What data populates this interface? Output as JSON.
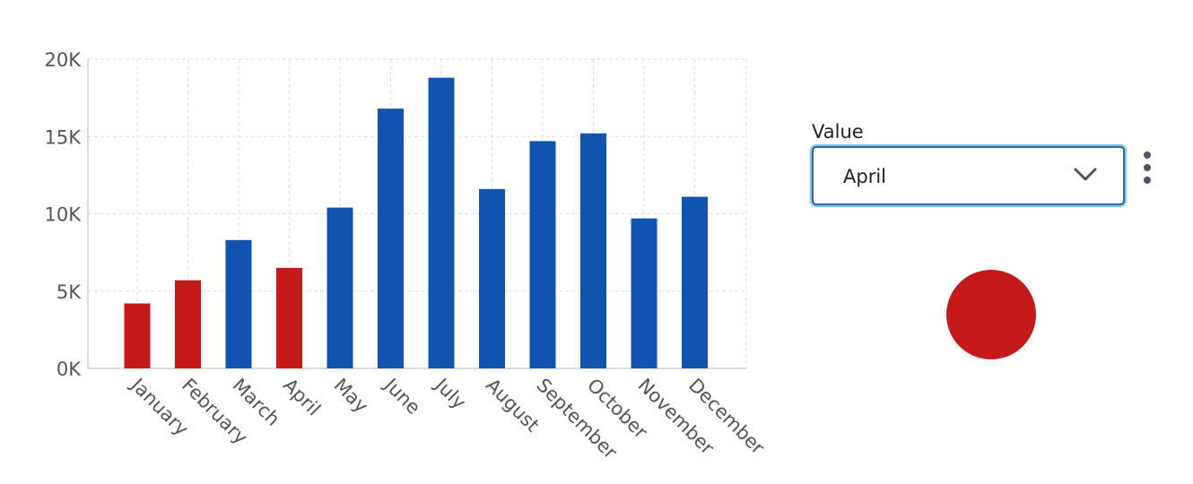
{
  "chart_data": {
    "type": "bar",
    "categories": [
      "January",
      "February",
      "March",
      "April",
      "May",
      "June",
      "July",
      "August",
      "September",
      "October",
      "November",
      "December"
    ],
    "values": [
      4200,
      5700,
      8300,
      6500,
      10400,
      16800,
      18800,
      11600,
      14700,
      15200,
      9700,
      11100
    ],
    "colors": [
      "#c41a1a",
      "#c41a1a",
      "#1155b0",
      "#c41a1a",
      "#1155b0",
      "#1155b0",
      "#1155b0",
      "#1155b0",
      "#1155b0",
      "#1155b0",
      "#1155b0",
      "#1155b0"
    ],
    "ylim": [
      0,
      20000
    ],
    "yticks": [
      {
        "value": 0,
        "label": "0K"
      },
      {
        "value": 5000,
        "label": "5K"
      },
      {
        "value": 10000,
        "label": "10K"
      },
      {
        "value": 15000,
        "label": "15K"
      },
      {
        "value": 20000,
        "label": "20K"
      }
    ],
    "grid": true
  },
  "control": {
    "label": "Value",
    "selected": "April",
    "indicator_color": "#c41a1a"
  }
}
